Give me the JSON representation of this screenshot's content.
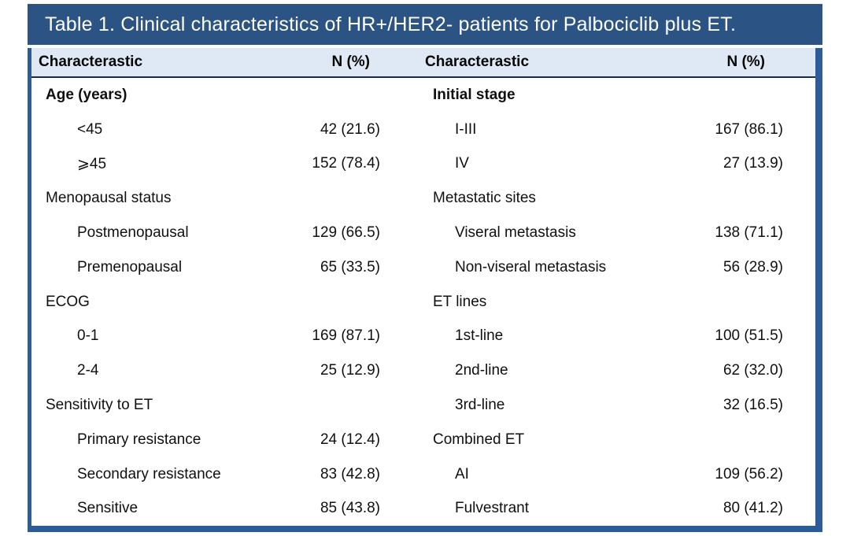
{
  "title": "Table 1. Clinical characteristics of HR+/HER2- patients for Palbociclib plus ET.",
  "header": {
    "col1": "Characterastic",
    "col2": "N (%)",
    "col3": "Characterastic",
    "col4": "N (%)"
  },
  "colors": {
    "title_bar_bg": "#2b5484",
    "title_text": "#ffffff",
    "outer_border": "#2e5c99",
    "header_bg": "#dee9f5",
    "header_underline": "#1c2e44",
    "body_text": "#101010"
  },
  "rows": [
    {
      "left": {
        "label": "Age (years)",
        "value": "",
        "indent": false,
        "bold": true
      },
      "right": {
        "label": "Initial stage",
        "value": "",
        "indent": false,
        "bold": true
      }
    },
    {
      "left": {
        "label": "<45",
        "value": "42 (21.6)",
        "indent": true,
        "bold": false
      },
      "right": {
        "label": "I-III",
        "value": "167 (86.1)",
        "indent": true,
        "bold": false
      }
    },
    {
      "left": {
        "label": "⩾45",
        "value": "152 (78.4)",
        "indent": true,
        "bold": false
      },
      "right": {
        "label": "IV",
        "value": "27 (13.9)",
        "indent": true,
        "bold": false
      }
    },
    {
      "left": {
        "label": "Menopausal status",
        "value": "",
        "indent": false,
        "bold": false
      },
      "right": {
        "label": "Metastatic sites",
        "value": "",
        "indent": false,
        "bold": false
      }
    },
    {
      "left": {
        "label": "Postmenopausal",
        "value": "129 (66.5)",
        "indent": true,
        "bold": false
      },
      "right": {
        "label": "Viseral metastasis",
        "value": "138 (71.1)",
        "indent": true,
        "bold": false
      }
    },
    {
      "left": {
        "label": "Premenopausal",
        "value": "65 (33.5)",
        "indent": true,
        "bold": false
      },
      "right": {
        "label": "Non-viseral metastasis",
        "value": "56 (28.9)",
        "indent": true,
        "bold": false
      }
    },
    {
      "left": {
        "label": "ECOG",
        "value": "",
        "indent": false,
        "bold": false
      },
      "right": {
        "label": "ET lines",
        "value": "",
        "indent": false,
        "bold": false
      }
    },
    {
      "left": {
        "label": "0-1",
        "value": "169 (87.1)",
        "indent": true,
        "bold": false
      },
      "right": {
        "label": "1st-line",
        "value": "100 (51.5)",
        "indent": true,
        "bold": false
      }
    },
    {
      "left": {
        "label": "2-4",
        "value": "25 (12.9)",
        "indent": true,
        "bold": false
      },
      "right": {
        "label": "2nd-line",
        "value": "62 (32.0)",
        "indent": true,
        "bold": false
      }
    },
    {
      "left": {
        "label": "Sensitivity to ET",
        "value": "",
        "indent": false,
        "bold": false
      },
      "right": {
        "label": "3rd-line",
        "value": "32 (16.5)",
        "indent": true,
        "bold": false
      }
    },
    {
      "left": {
        "label": "Primary resistance",
        "value": "24 (12.4)",
        "indent": true,
        "bold": false
      },
      "right": {
        "label": "Combined ET",
        "value": "",
        "indent": false,
        "bold": false
      }
    },
    {
      "left": {
        "label": "Secondary resistance",
        "value": "83 (42.8)",
        "indent": true,
        "bold": false
      },
      "right": {
        "label": "AI",
        "value": "109 (56.2)",
        "indent": true,
        "bold": false
      }
    },
    {
      "left": {
        "label": "Sensitive",
        "value": "85 (43.8)",
        "indent": true,
        "bold": false
      },
      "right": {
        "label": "Fulvestrant",
        "value": "80 (41.2)",
        "indent": true,
        "bold": false
      }
    }
  ]
}
